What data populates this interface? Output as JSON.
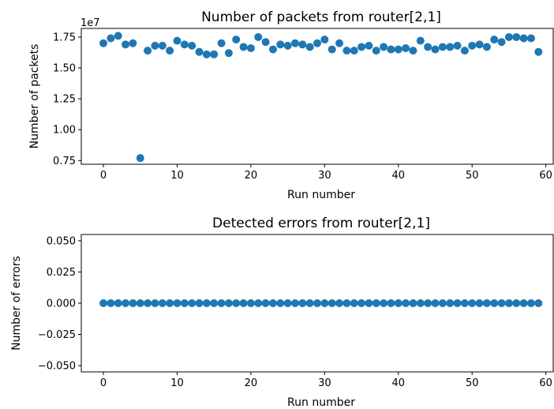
{
  "figure": {
    "background": "#ffffff",
    "marker_color": "#1f77b4"
  },
  "chart_data": [
    {
      "type": "scatter",
      "title": "Number of packets from router[2,1]",
      "xlabel": "Run number",
      "ylabel": "Number of packets",
      "y_offset_label": "1e7",
      "xlim": [
        -3,
        61
      ],
      "ylim": [
        0.72,
        1.82
      ],
      "x_ticks": [
        0,
        10,
        20,
        30,
        40,
        50,
        60
      ],
      "x_tick_labels": [
        "0",
        "10",
        "20",
        "30",
        "40",
        "50",
        "60"
      ],
      "y_ticks": [
        0.75,
        1.0,
        1.25,
        1.5,
        1.75
      ],
      "y_tick_labels": [
        "0.75",
        "1.00",
        "1.25",
        "1.50",
        "1.75"
      ],
      "grid": false,
      "series": [
        {
          "color": "#1f77b4",
          "x": [
            0,
            1,
            2,
            3,
            4,
            5,
            6,
            7,
            8,
            9,
            10,
            11,
            12,
            13,
            14,
            15,
            16,
            17,
            18,
            19,
            20,
            21,
            22,
            23,
            24,
            25,
            26,
            27,
            28,
            29,
            30,
            31,
            32,
            33,
            34,
            35,
            36,
            37,
            38,
            39,
            40,
            41,
            42,
            43,
            44,
            45,
            46,
            47,
            48,
            49,
            50,
            51,
            52,
            53,
            54,
            55,
            56,
            57,
            58,
            59
          ],
          "y": [
            1.7,
            1.74,
            1.76,
            1.69,
            1.7,
            0.77,
            1.64,
            1.68,
            1.68,
            1.64,
            1.72,
            1.69,
            1.68,
            1.63,
            1.61,
            1.61,
            1.7,
            1.62,
            1.73,
            1.67,
            1.66,
            1.75,
            1.71,
            1.65,
            1.69,
            1.68,
            1.7,
            1.69,
            1.67,
            1.7,
            1.73,
            1.65,
            1.7,
            1.64,
            1.64,
            1.67,
            1.68,
            1.64,
            1.67,
            1.65,
            1.65,
            1.66,
            1.64,
            1.72,
            1.67,
            1.65,
            1.67,
            1.67,
            1.68,
            1.64,
            1.68,
            1.69,
            1.67,
            1.73,
            1.71,
            1.75,
            1.75,
            1.74,
            1.74,
            1.63
          ]
        }
      ]
    },
    {
      "type": "scatter",
      "title": "Detected errors from router[2,1]",
      "xlabel": "Run number",
      "ylabel": "Number of errors",
      "xlim": [
        -3,
        61
      ],
      "ylim": [
        -0.055,
        0.055
      ],
      "x_ticks": [
        0,
        10,
        20,
        30,
        40,
        50,
        60
      ],
      "x_tick_labels": [
        "0",
        "10",
        "20",
        "30",
        "40",
        "50",
        "60"
      ],
      "y_ticks": [
        -0.05,
        -0.025,
        0.0,
        0.025,
        0.05
      ],
      "y_tick_labels": [
        "−0.050",
        "−0.025",
        "0.000",
        "0.025",
        "0.050"
      ],
      "grid": false,
      "series": [
        {
          "color": "#1f77b4",
          "x": [
            0,
            1,
            2,
            3,
            4,
            5,
            6,
            7,
            8,
            9,
            10,
            11,
            12,
            13,
            14,
            15,
            16,
            17,
            18,
            19,
            20,
            21,
            22,
            23,
            24,
            25,
            26,
            27,
            28,
            29,
            30,
            31,
            32,
            33,
            34,
            35,
            36,
            37,
            38,
            39,
            40,
            41,
            42,
            43,
            44,
            45,
            46,
            47,
            48,
            49,
            50,
            51,
            52,
            53,
            54,
            55,
            56,
            57,
            58,
            59
          ],
          "y": [
            0,
            0,
            0,
            0,
            0,
            0,
            0,
            0,
            0,
            0,
            0,
            0,
            0,
            0,
            0,
            0,
            0,
            0,
            0,
            0,
            0,
            0,
            0,
            0,
            0,
            0,
            0,
            0,
            0,
            0,
            0,
            0,
            0,
            0,
            0,
            0,
            0,
            0,
            0,
            0,
            0,
            0,
            0,
            0,
            0,
            0,
            0,
            0,
            0,
            0,
            0,
            0,
            0,
            0,
            0,
            0,
            0,
            0,
            0,
            0
          ]
        }
      ]
    }
  ]
}
